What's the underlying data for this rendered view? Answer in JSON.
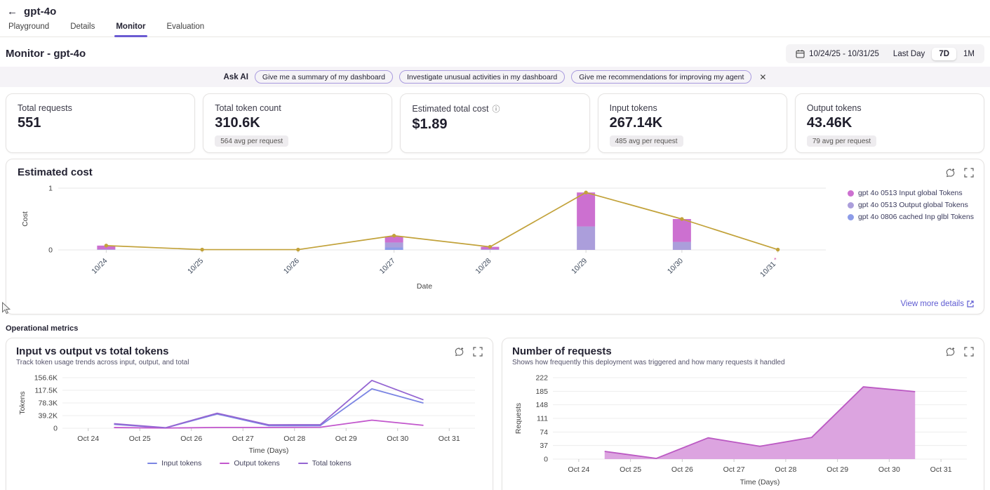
{
  "icons": {
    "back": "←",
    "close": "✕",
    "info": "ⓘ"
  },
  "header": {
    "title": "gpt-4o",
    "tabs": [
      {
        "label": "Playground"
      },
      {
        "label": "Details"
      },
      {
        "label": "Monitor"
      },
      {
        "label": "Evaluation"
      }
    ],
    "active_tab": "Monitor"
  },
  "toolbar": {
    "title": "Monitor - gpt-4o",
    "date_range": "10/24/25 - 10/31/25",
    "range_options": [
      {
        "label": "Last Day"
      },
      {
        "label": "7D"
      },
      {
        "label": "1M"
      }
    ],
    "active_range": "7D"
  },
  "ask_ai": {
    "label": "Ask AI",
    "chips": [
      {
        "label": "Give me a summary of my dashboard"
      },
      {
        "label": "Investigate unusual activities in my dashboard"
      },
      {
        "label": "Give me recommendations for improving my agent"
      }
    ]
  },
  "metric_cards": [
    {
      "label": "Total requests",
      "value": "551"
    },
    {
      "label": "Total token count",
      "value": "310.6K",
      "badge": "564 avg per request"
    },
    {
      "label": "Estimated total cost",
      "value": "$1.89",
      "has_info": true
    },
    {
      "label": "Input tokens",
      "value": "267.14K",
      "badge": "485 avg per request"
    },
    {
      "label": "Output tokens",
      "value": "43.46K",
      "badge": "79 avg per request"
    }
  ],
  "cost_card": {
    "title": "Estimated cost",
    "details_link": "View more details"
  },
  "sections": {
    "operational": "Operational metrics"
  },
  "tokens_card": {
    "title": "Input vs output vs total tokens",
    "subtitle": "Track token usage trends across input, output, and total"
  },
  "requests_card": {
    "title": "Number of requests",
    "subtitle": "Shows how frequently this deployment was triggered and how many requests it handled"
  },
  "chart_data": [
    {
      "id": "cost",
      "type": "bar",
      "title": "Estimated cost",
      "xlabel": "Date",
      "ylabel": "Cost",
      "ylim": [
        0,
        1
      ],
      "yticks": [
        {
          "v": 0,
          "label": "0"
        },
        {
          "v": 1,
          "label": "1"
        }
      ],
      "categories": [
        "10/24",
        "10/25",
        "10/26",
        "10/27",
        "10/28",
        "10/29",
        "10/30",
        "10/31"
      ],
      "last_category_asterisk": true,
      "stack_order": "bottom-to-top",
      "stack_series": [
        {
          "name": "gpt 4o 0806 cached Inp glbl Tokens",
          "color": "#8D9CE8",
          "values": [
            0,
            0,
            0,
            0.04,
            0,
            0,
            0,
            0
          ]
        },
        {
          "name": "gpt 4o 0513 Output global Tokens",
          "color": "#AB9EDB",
          "values": [
            0.01,
            0,
            0,
            0.08,
            0.01,
            0.38,
            0.13,
            0
          ]
        },
        {
          "name": "gpt 4o 0513 Input global Tokens",
          "color": "#CC70D0",
          "values": [
            0.06,
            0,
            0,
            0.1,
            0.04,
            0.55,
            0.37,
            0
          ]
        }
      ],
      "line_series": {
        "name": "Estimated cost",
        "color": "#C2A23A",
        "values": [
          0.07,
          0.005,
          0.005,
          0.23,
          0.05,
          0.93,
          0.5,
          0.005
        ]
      },
      "legend": [
        {
          "label": "gpt 4o 0513 Input global Tokens",
          "color": "#CC70D0"
        },
        {
          "label": "gpt 4o 0513 Output global Tokens",
          "color": "#AB9EDB"
        },
        {
          "label": "gpt 4o 0806 cached Inp glbl Tokens",
          "color": "#8D9CE8"
        }
      ]
    },
    {
      "id": "tokens",
      "type": "line",
      "title": "Input vs output vs total tokens",
      "xlabel": "Time (Days)",
      "ylabel": "Tokens",
      "ylim": [
        0,
        156600
      ],
      "yticks": [
        {
          "v": 0,
          "label": "0"
        },
        {
          "v": 39150,
          "label": "39.2K"
        },
        {
          "v": 78300,
          "label": "78.3K"
        },
        {
          "v": 117450,
          "label": "117.5K"
        },
        {
          "v": 156600,
          "label": "156.6K"
        }
      ],
      "x_ticks": [
        "Oct 24",
        "Oct 25",
        "Oct 26",
        "Oct 27",
        "Oct 28",
        "Oct 29",
        "Oct 30",
        "Oct 31"
      ],
      "points_at": "midpoints",
      "series": [
        {
          "name": "Input tokens",
          "color": "#7B85E3",
          "values": [
            12000,
            1000,
            44000,
            8000,
            8000,
            122000,
            78000
          ]
        },
        {
          "name": "Output tokens",
          "color": "#C257CD",
          "values": [
            2000,
            500,
            2500,
            2500,
            3000,
            25000,
            9000
          ]
        },
        {
          "name": "Total tokens",
          "color": "#9465D2",
          "values": [
            14000,
            1500,
            46500,
            10500,
            11000,
            148000,
            88000
          ]
        }
      ]
    },
    {
      "id": "requests",
      "type": "area",
      "title": "Number of requests",
      "xlabel": "Time (Days)",
      "ylabel": "Requests",
      "ylim": [
        0,
        222
      ],
      "yticks": [
        {
          "v": 0,
          "label": "0"
        },
        {
          "v": 37,
          "label": "37"
        },
        {
          "v": 74,
          "label": "74"
        },
        {
          "v": 111,
          "label": "111"
        },
        {
          "v": 148,
          "label": "148"
        },
        {
          "v": 185,
          "label": "185"
        },
        {
          "v": 222,
          "label": "222"
        }
      ],
      "x_ticks": [
        "Oct 24",
        "Oct 25",
        "Oct 26",
        "Oct 27",
        "Oct 28",
        "Oct 29",
        "Oct 30",
        "Oct 31"
      ],
      "points_at": "midpoints",
      "series": [
        {
          "name": "Requests",
          "color": "#BB59C3",
          "fill": "#DCA4E0",
          "values": [
            21,
            2,
            58,
            35,
            59,
            197,
            184
          ]
        }
      ]
    }
  ]
}
